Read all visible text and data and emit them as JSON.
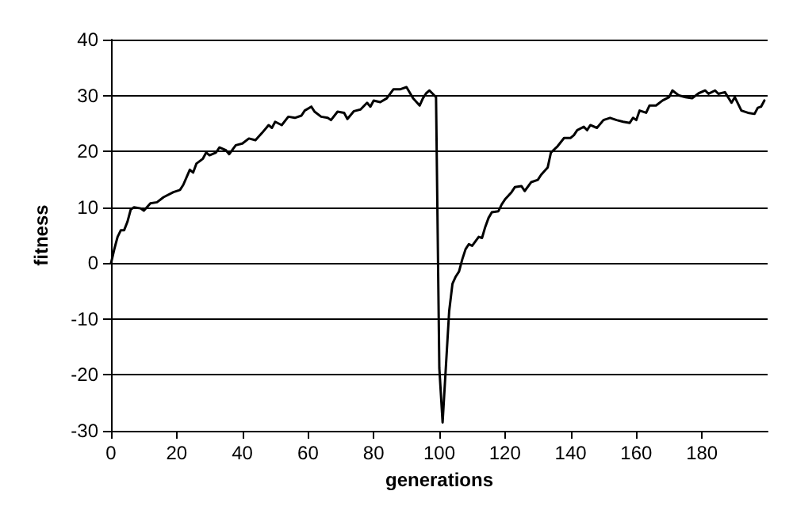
{
  "chart_data": {
    "type": "line",
    "xlabel": "generations",
    "ylabel": "fitness",
    "xlim": [
      0,
      200
    ],
    "xticks": [
      0,
      20,
      40,
      60,
      80,
      100,
      120,
      140,
      160,
      180
    ],
    "ylim": [
      -30,
      40
    ],
    "yticks": [
      -30,
      -20,
      -10,
      0,
      10,
      20,
      30,
      40
    ],
    "grid": "y",
    "marker": "none",
    "line_style": "solid",
    "series": [
      {
        "color": "#000000",
        "x": [
          0,
          1,
          2,
          3,
          4,
          5,
          6,
          7,
          9,
          10,
          12,
          14,
          16,
          19,
          21,
          22,
          24,
          25,
          26,
          28,
          29,
          30,
          32,
          33,
          35,
          36,
          38,
          40,
          42,
          44,
          46,
          48,
          49,
          50,
          52,
          54,
          56,
          58,
          59,
          61,
          62,
          64,
          66,
          67,
          69,
          71,
          72,
          74,
          76,
          78,
          79,
          80,
          82,
          84,
          86,
          88,
          90,
          92,
          94,
          95,
          96,
          97,
          99,
          100,
          101,
          103,
          104,
          105,
          106,
          107,
          108,
          109,
          110,
          112,
          113,
          114,
          115,
          116,
          118,
          119,
          120,
          122,
          123,
          125,
          126,
          128,
          130,
          131,
          133,
          134,
          136,
          138,
          140,
          141,
          142,
          144,
          145,
          146,
          148,
          150,
          152,
          154,
          156,
          158,
          159,
          160,
          161,
          163,
          164,
          166,
          168,
          170,
          171,
          173,
          175,
          177,
          179,
          181,
          182,
          184,
          185,
          187,
          189,
          190,
          192,
          194,
          196,
          197,
          198,
          199
        ],
        "values": [
          0,
          2.5,
          4.7,
          5.9,
          5.9,
          7.4,
          9.6,
          10,
          9.8,
          9.4,
          10.7,
          10.9,
          11.8,
          12.7,
          13.1,
          14,
          16.7,
          16.2,
          17.8,
          18.7,
          19.8,
          19.3,
          19.8,
          20.7,
          20.2,
          19.5,
          21.1,
          21.4,
          22.3,
          22,
          23.3,
          24.7,
          24.2,
          25.3,
          24.7,
          26.2,
          26,
          26.4,
          27.3,
          28,
          27.1,
          26.2,
          26,
          25.6,
          27.1,
          26.9,
          25.8,
          27.2,
          27.5,
          28.7,
          28,
          29.1,
          28.8,
          29.5,
          31.1,
          31.1,
          31.5,
          29.5,
          28.2,
          29.5,
          30.4,
          30.9,
          29.7,
          -18.8,
          -28.5,
          -8.6,
          -3.7,
          -2.4,
          -1.5,
          0.7,
          2.5,
          3.4,
          3.1,
          4.7,
          4.5,
          6.5,
          8.1,
          9.1,
          9.3,
          10.5,
          11.4,
          12.7,
          13.6,
          13.8,
          12.9,
          14.5,
          14.9,
          15.8,
          17.1,
          19.8,
          20.9,
          22.4,
          22.4,
          22.9,
          23.8,
          24.4,
          23.8,
          24.7,
          24.2,
          25.6,
          26,
          25.6,
          25.3,
          25.1,
          26,
          25.6,
          27.3,
          26.9,
          28.2,
          28.2,
          29.1,
          29.7,
          30.9,
          30,
          29.7,
          29.5,
          30.4,
          30.9,
          30.3,
          30.9,
          30.3,
          30.6,
          28.7,
          29.7,
          27.3,
          26.9,
          26.7,
          27.8,
          28,
          29.1
        ]
      }
    ]
  }
}
